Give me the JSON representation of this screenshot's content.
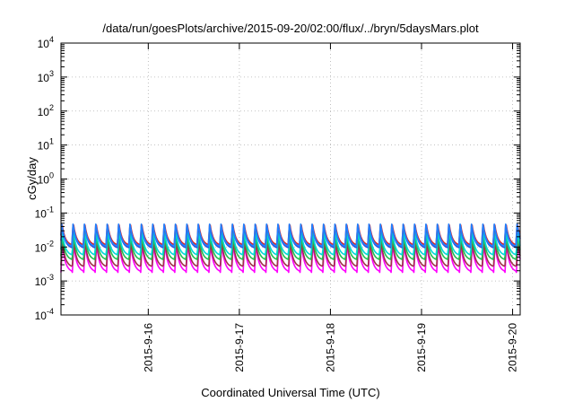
{
  "chart_data": {
    "type": "line",
    "title": "/data/run/goesPlots/archive/2015-09-20/02:00/flux/../bryn/5daysMars.plot",
    "xlabel": "Coordinated Universal Time (UTC)",
    "ylabel": "cGy/day",
    "yscale": "log",
    "ylim": [
      0.0001,
      10000
    ],
    "xlim": [
      "2015-09-15T01:00",
      "2015-09-20T02:00"
    ],
    "x_ticks": [
      "2015-9-16",
      "2015-9-17",
      "2015-9-18",
      "2015-9-19",
      "2015-9-20"
    ],
    "y_ticks": [
      {
        "base": "10",
        "exp": "-4"
      },
      {
        "base": "10",
        "exp": "-3"
      },
      {
        "base": "10",
        "exp": "-2"
      },
      {
        "base": "10",
        "exp": "-1"
      },
      {
        "base": "10",
        "exp": "0"
      },
      {
        "base": "10",
        "exp": "1"
      },
      {
        "base": "10",
        "exp": "2"
      },
      {
        "base": "10",
        "exp": "3"
      },
      {
        "base": "10",
        "exp": "4"
      }
    ],
    "grid": true,
    "legend": "none",
    "oscillation_period_hours": 3,
    "series": [
      {
        "color": "#ff00ff",
        "peak": 0.012,
        "trough": 0.0018
      },
      {
        "color": "#a0304a",
        "peak": 0.015,
        "trough": 0.0025
      },
      {
        "color": "#20c050",
        "peak": 0.022,
        "trough": 0.004
      },
      {
        "color": "#00d8d8",
        "peak": 0.03,
        "trough": 0.0055
      },
      {
        "color": "#3050e0",
        "peak": 0.045,
        "trough": 0.009
      },
      {
        "color": "#e02020",
        "peak": 0.055,
        "trough": 0.011
      },
      {
        "color": "#2080ff",
        "peak": 0.05,
        "trough": 0.01
      }
    ]
  }
}
